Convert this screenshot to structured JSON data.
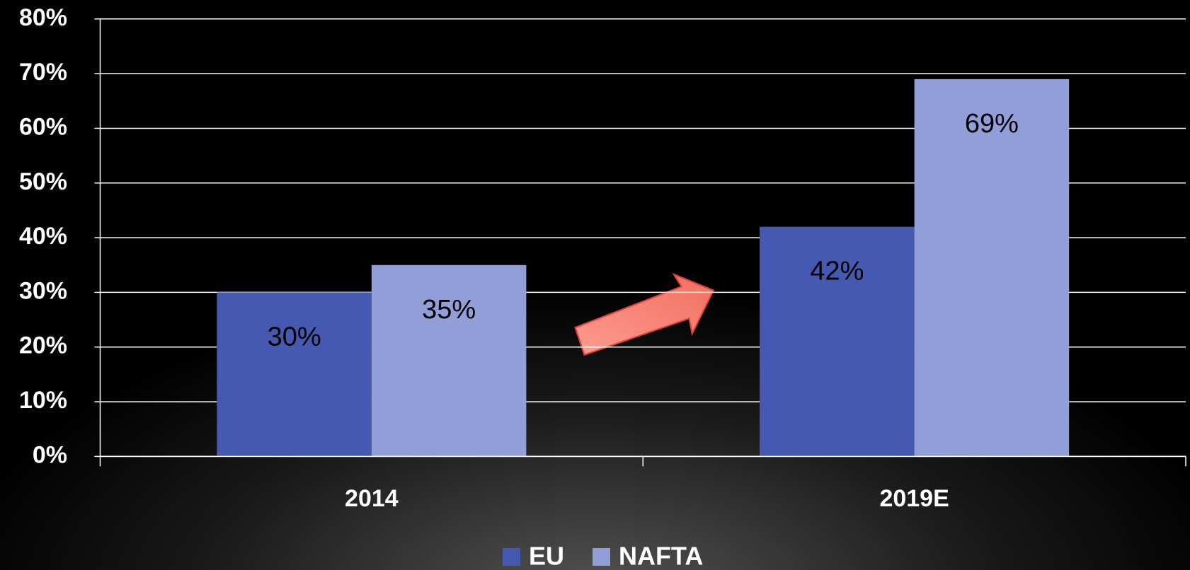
{
  "chart_data": {
    "type": "bar",
    "categories": [
      "2014",
      "2019E"
    ],
    "series": [
      {
        "name": "EU",
        "color": "#4559b0",
        "values": [
          30,
          42
        ],
        "value_labels": [
          "30%",
          "42%"
        ]
      },
      {
        "name": "NAFTA",
        "color": "#929ed8",
        "values": [
          35,
          69
        ],
        "value_labels": [
          "35%",
          "69%"
        ]
      }
    ],
    "ylim": [
      0,
      80
    ],
    "yticks": [
      {
        "value": 0,
        "label": "0%"
      },
      {
        "value": 10,
        "label": "10%"
      },
      {
        "value": 20,
        "label": "20%"
      },
      {
        "value": 30,
        "label": "30%"
      },
      {
        "value": 40,
        "label": "40%"
      },
      {
        "value": 50,
        "label": "50%"
      },
      {
        "value": 60,
        "label": "60%"
      },
      {
        "value": 70,
        "label": "70%"
      },
      {
        "value": 80,
        "label": "80%"
      }
    ],
    "grid": true,
    "legend": "bottom"
  }
}
